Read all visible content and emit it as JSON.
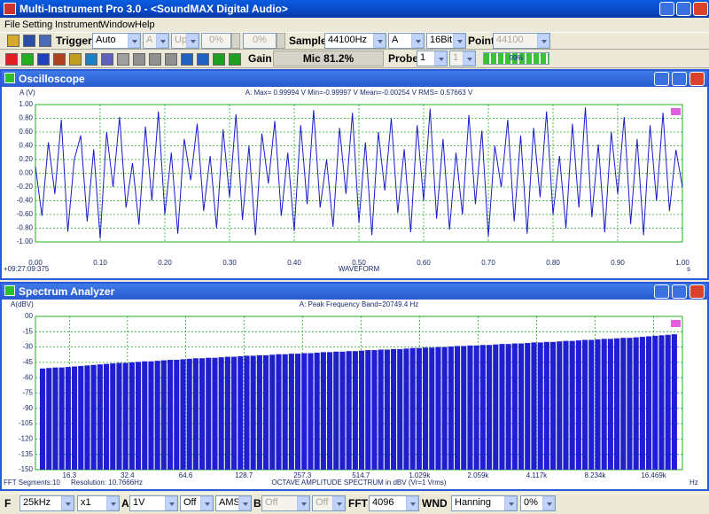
{
  "ui": {
    "window_title": "Multi-Instrument Pro 3.0 - <SoundMAX Digital Audio>",
    "menu": [
      "File",
      "Setting",
      "Instrument",
      "Window",
      "Help"
    ],
    "toolbar1": {
      "trigger_label": "Trigger",
      "trigger_mode": "Auto",
      "trigger_channel": "A",
      "trigger_edge": "Up",
      "level1": "0%",
      "level2": "0%",
      "sample_label": "Sample",
      "sample_rate": "44100Hz",
      "channel": "A",
      "bits": "16Bit",
      "point_label": "Point",
      "points": "44100"
    },
    "toolbar2": {
      "gain_label": "Gain",
      "gain": "Mic 81.2%",
      "probe_label": "Probe",
      "probe_a": "1",
      "probe_b": "1",
      "progress": "99%"
    },
    "bottom": {
      "f_label": "F",
      "freq_range": "25kHz",
      "zoom": "x1",
      "a_label": "A",
      "a_range": "1V",
      "a_coupling": "Off",
      "ams": "AMS",
      "b_label": "B",
      "b_range": "Off",
      "b_coupling": "Off",
      "fft_label": "FFT",
      "fft_size": "4096",
      "wnd_label": "WND",
      "window": "Hanning",
      "overlap": "0%"
    }
  },
  "chart_data": [
    {
      "type": "line",
      "window_title": "Oscilloscope",
      "y_label": "A (V)",
      "stats": "A: Max= 0.99994 V  Min=-0.99997 V  Mean=-0.00254 V  RMS= 0.57663 V",
      "x_label": "WAVEFORM",
      "x_unit": "s",
      "timestamp": "+09:27:09:375",
      "color": "#1a1acc",
      "grid": true,
      "x": [
        0,
        0.01,
        0.02,
        0.03,
        0.04,
        0.05,
        0.06,
        0.07,
        0.08,
        0.09,
        0.1,
        0.11,
        0.12,
        0.13,
        0.14,
        0.15,
        0.16,
        0.17,
        0.18,
        0.19,
        0.2,
        0.21,
        0.22,
        0.23,
        0.24,
        0.25,
        0.26,
        0.27,
        0.28,
        0.29,
        0.3,
        0.31,
        0.32,
        0.33,
        0.34,
        0.35,
        0.36,
        0.37,
        0.38,
        0.39,
        0.4,
        0.41,
        0.42,
        0.43,
        0.44,
        0.45,
        0.46,
        0.47,
        0.48,
        0.49,
        0.5,
        0.51,
        0.52,
        0.53,
        0.54,
        0.55,
        0.56,
        0.57,
        0.58,
        0.59,
        0.6,
        0.61,
        0.62,
        0.63,
        0.64,
        0.65,
        0.66,
        0.67,
        0.68,
        0.69,
        0.7,
        0.71,
        0.72,
        0.73,
        0.74,
        0.75,
        0.76,
        0.77,
        0.78,
        0.79,
        0.8,
        0.81,
        0.82,
        0.83,
        0.84,
        0.85,
        0.86,
        0.87,
        0.88,
        0.89,
        0.9,
        0.91,
        0.92,
        0.93,
        0.94,
        0.95,
        0.96,
        0.97,
        0.98,
        0.99,
        1
      ],
      "values": [
        0.1,
        -0.62,
        0.45,
        -0.3,
        0.78,
        -0.85,
        0.2,
        0.55,
        -0.7,
        0.35,
        -0.95,
        0.6,
        -0.2,
        0.82,
        -0.5,
        0.15,
        -0.75,
        0.68,
        -0.4,
        0.9,
        -0.6,
        0.3,
        -0.88,
        0.5,
        -0.1,
        0.72,
        -0.55,
        0.25,
        -0.8,
        0.64,
        -0.35,
        0.86,
        -0.68,
        0.4,
        -0.9,
        0.58,
        -0.15,
        0.76,
        -0.62,
        0.3,
        -0.84,
        0.7,
        -0.45,
        0.92,
        -0.5,
        0.2,
        -0.78,
        0.66,
        -0.3,
        0.88,
        -0.72,
        0.45,
        -0.9,
        0.6,
        -0.25,
        0.8,
        -0.58,
        0.35,
        -0.86,
        0.7,
        -0.4,
        0.94,
        -0.66,
        0.5,
        -0.82,
        0.3,
        -0.6,
        0.85,
        -0.45,
        0.62,
        -0.92,
        0.4,
        -0.2,
        0.78,
        -0.7,
        0.55,
        -0.88,
        0.66,
        -0.35,
        0.9,
        -0.6,
        0.25,
        -0.8,
        0.72,
        -0.5,
        0.96,
        -0.64,
        0.42,
        -0.86,
        0.6,
        -0.3,
        0.82,
        -0.74,
        0.5,
        -0.9,
        0.7,
        -0.4,
        0.88,
        -0.55,
        0.34,
        -0.2
      ],
      "xlim": [
        0,
        1
      ],
      "ylim": [
        -1,
        1
      ],
      "xticks": [
        {
          "value": 0,
          "label": "0.00"
        },
        {
          "value": 0.1,
          "label": "0.10"
        },
        {
          "value": 0.2,
          "label": "0.20"
        },
        {
          "value": 0.3,
          "label": "0.30"
        },
        {
          "value": 0.4,
          "label": "0.40"
        },
        {
          "value": 0.5,
          "label": "0.50"
        },
        {
          "value": 0.6,
          "label": "0.60"
        },
        {
          "value": 0.7,
          "label": "0.70"
        },
        {
          "value": 0.8,
          "label": "0.80"
        },
        {
          "value": 0.9,
          "label": "0.90"
        },
        {
          "value": 1,
          "label": "1.00"
        }
      ],
      "yticks": [
        {
          "value": 1,
          "label": "1.00"
        },
        {
          "value": 0.8,
          "label": "0.80"
        },
        {
          "value": 0.6,
          "label": "0.60"
        },
        {
          "value": 0.4,
          "label": "0.40"
        },
        {
          "value": 0.2,
          "label": "0.20"
        },
        {
          "value": 0,
          "label": "0.00"
        },
        {
          "value": -0.2,
          "label": "-0.20"
        },
        {
          "value": -0.4,
          "label": "-0.40"
        },
        {
          "value": -0.6,
          "label": "-0.60"
        },
        {
          "value": -0.8,
          "label": "-0.80"
        },
        {
          "value": -1,
          "label": "-1.00"
        }
      ]
    },
    {
      "type": "bar",
      "window_title": "Spectrum Analyzer",
      "y_label": "A(dBV)",
      "peak": "A: Peak Frequency Band=20749.4 Hz",
      "x_label": "OCTAVE AMPLITUDE SPECTRUM in dBV (Vr=1 Vrms)",
      "x_unit": "Hz",
      "fft_segments": "FFT Segments:10",
      "resolution": "Resolution: 10.7666Hz",
      "color": "#1f1fcf",
      "grid": true,
      "xscale": "log",
      "values": [
        -51,
        -50.5,
        -50,
        -50,
        -49.5,
        -49,
        -48.5,
        -48,
        -47.5,
        -47,
        -46.5,
        -46,
        -45.5,
        -45.5,
        -45,
        -44.5,
        -44,
        -44,
        -43.5,
        -43,
        -42.5,
        -42.5,
        -42,
        -41.5,
        -41,
        -41,
        -40.5,
        -40.5,
        -40,
        -39.5,
        -39.5,
        -39,
        -38.5,
        -38.5,
        -38,
        -38,
        -37.5,
        -37,
        -37,
        -36.5,
        -36.5,
        -36,
        -36,
        -35.5,
        -35,
        -35,
        -34.5,
        -34.5,
        -34,
        -34,
        -33.5,
        -33,
        -33,
        -32.5,
        -32.5,
        -32,
        -32,
        -31.5,
        -31,
        -31,
        -30.5,
        -30.5,
        -30,
        -30,
        -29.5,
        -29,
        -29,
        -28.5,
        -28.5,
        -28,
        -28,
        -27.5,
        -27,
        -27,
        -26.5,
        -26.5,
        -26,
        -25.5,
        -25.5,
        -25,
        -25,
        -24.5,
        -24,
        -24,
        -23.5,
        -23,
        -23,
        -22.5,
        -22,
        -22,
        -21.5,
        -21,
        -21,
        -20.5,
        -20,
        -19.5,
        -19,
        -18.5,
        -18,
        -17.5
      ],
      "xlim": [
        10.9,
        23150
      ],
      "ylim": [
        -150,
        0
      ],
      "xticks": [
        16.3,
        32.4,
        64.6,
        128.7,
        257.3,
        514.7,
        {
          "value": 1029,
          "label": "1.029k"
        },
        {
          "value": 2059,
          "label": "2.059k"
        },
        {
          "value": 4117,
          "label": "4.117k"
        },
        {
          "value": 8234,
          "label": "8.234k"
        },
        {
          "value": 16469,
          "label": "16.469k"
        }
      ],
      "yticks": [
        {
          "value": 0,
          "label": "00"
        },
        -15,
        -30,
        -45,
        -60,
        -75,
        -90,
        -105,
        -120,
        -135,
        -150
      ]
    }
  ]
}
